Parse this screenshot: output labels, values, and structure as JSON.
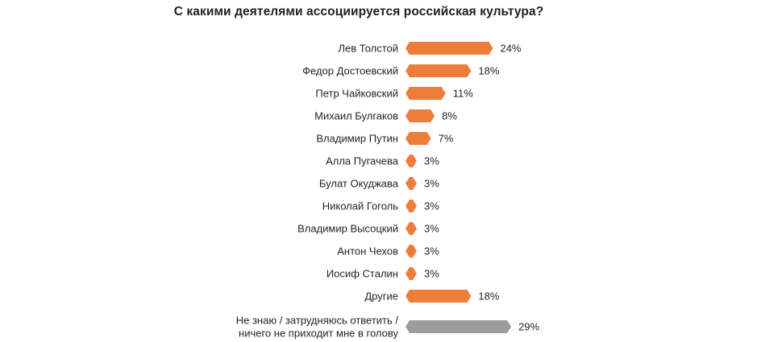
{
  "chart_data": {
    "type": "bar",
    "orientation": "horizontal",
    "title": "С какими деятелями ассоциируется российская культура?",
    "categories": [
      "Лев Толстой",
      "Федор Достоевский",
      "Петр Чайковский",
      "Михаил Булгаков",
      "Владимир Путин",
      "Алла Пугачева",
      "Булат Окуджава",
      "Николай Гоголь",
      "Владимир Высоцкий",
      "Антон Чехов",
      "Иосиф Сталин",
      "Другие",
      "Не знаю / затрудняюсь ответить / ничего не приходит мне в голову"
    ],
    "category_lines": [
      [
        "Лев Толстой"
      ],
      [
        "Федор Достоевский"
      ],
      [
        "Петр Чайковский"
      ],
      [
        "Михаил Булгаков"
      ],
      [
        "Владимир Путин"
      ],
      [
        "Алла Пугачева"
      ],
      [
        "Булат Окуджава"
      ],
      [
        "Николай Гоголь"
      ],
      [
        "Владимир Высоцкий"
      ],
      [
        "Антон Чехов"
      ],
      [
        "Иосиф Сталин"
      ],
      [
        "Другие"
      ],
      [
        "Не знаю / затрудняюсь ответить /",
        "ничего не приходит мне в голову"
      ]
    ],
    "values": [
      24,
      18,
      11,
      8,
      7,
      3,
      3,
      3,
      3,
      3,
      3,
      18,
      29
    ],
    "value_labels": [
      "24%",
      "18%",
      "11%",
      "8%",
      "7%",
      "3%",
      "3%",
      "3%",
      "3%",
      "3%",
      "3%",
      "18%",
      "29%"
    ],
    "unit": "%",
    "colors": {
      "main": "#ec7d3a",
      "no_answer": "#9c9c9c"
    },
    "bar_colors": [
      "#ec7d3a",
      "#ec7d3a",
      "#ec7d3a",
      "#ec7d3a",
      "#ec7d3a",
      "#ec7d3a",
      "#ec7d3a",
      "#ec7d3a",
      "#ec7d3a",
      "#ec7d3a",
      "#ec7d3a",
      "#ec7d3a",
      "#9c9c9c"
    ],
    "bar_shape": "pointed-ends",
    "grid": false,
    "legend": "none"
  }
}
